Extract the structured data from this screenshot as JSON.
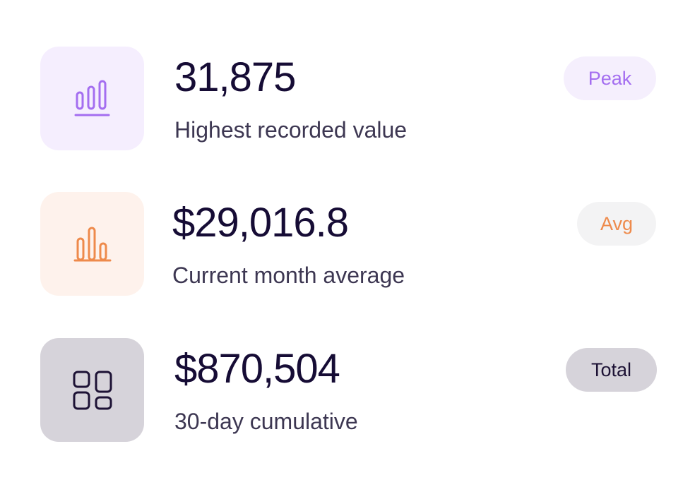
{
  "stats": [
    {
      "value": "31,875",
      "label": "Highest recorded value",
      "badge": "Peak",
      "icon": "bar-chart-underline-icon",
      "accent": "#a46ef0",
      "tile_bg": "#f5eefe",
      "badge_bg": "#f5effd"
    },
    {
      "value": "$29,016.8",
      "label": "Current month average",
      "badge": "Avg",
      "icon": "bar-chart-icon",
      "accent": "#ee8a4b",
      "tile_bg": "#fef2ec",
      "badge_bg": "#f3f3f4"
    },
    {
      "value": "$870,504",
      "label": "30-day cumulative",
      "badge": "Total",
      "icon": "dashboard-grid-icon",
      "accent": "#1d1235",
      "tile_bg": "#d6d3da",
      "badge_bg": "#d6d3da"
    }
  ]
}
